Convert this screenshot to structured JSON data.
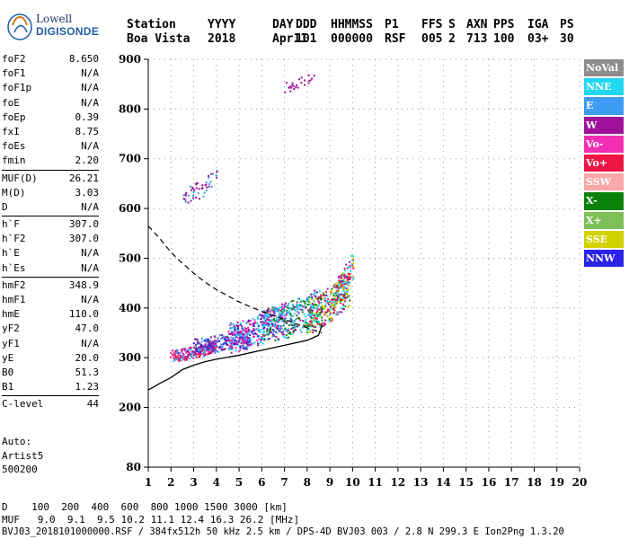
{
  "logo": {
    "line1": "Lowell",
    "line2": "DIGISONDE"
  },
  "header": {
    "row1": [
      "Station",
      "YYYY",
      "DAY",
      "DDD",
      "HHMMSS",
      "P1",
      "FFS",
      "S",
      "AXN",
      "PPS",
      "IGA",
      "PS"
    ],
    "row2": [
      "Boa Vista",
      "2018",
      "Apr11",
      "101",
      "000000",
      "RSF",
      "005",
      "2",
      "713",
      "100",
      "03+",
      "30"
    ]
  },
  "params": [
    [
      {
        "label": "foF2",
        "value": "8.650"
      },
      {
        "label": "foF1",
        "value": "N/A"
      },
      {
        "label": "foF1p",
        "value": "N/A"
      },
      {
        "label": "foE",
        "value": "N/A"
      },
      {
        "label": "foEp",
        "value": "0.39"
      },
      {
        "label": "fxI",
        "value": "8.75"
      },
      {
        "label": "foEs",
        "value": "N/A"
      },
      {
        "label": "fmin",
        "value": "2.20"
      }
    ],
    [
      {
        "label": "MUF(D)",
        "value": "26.21"
      },
      {
        "label": "M(D)",
        "value": "3.03"
      },
      {
        "label": "D",
        "value": "N/A"
      }
    ],
    [
      {
        "label": "h`F",
        "value": "307.0"
      },
      {
        "label": "h`F2",
        "value": "307.0"
      },
      {
        "label": "h`E",
        "value": "N/A"
      },
      {
        "label": "h`Es",
        "value": "N/A"
      }
    ],
    [
      {
        "label": "hmF2",
        "value": "348.9"
      },
      {
        "label": "hmF1",
        "value": "N/A"
      },
      {
        "label": "hmE",
        "value": "110.0"
      },
      {
        "label": "yF2",
        "value": "47.0"
      },
      {
        "label": "yF1",
        "value": "N/A"
      },
      {
        "label": "yE",
        "value": "20.0"
      },
      {
        "label": "B0",
        "value": "51.3"
      },
      {
        "label": "B1",
        "value": "1.23"
      }
    ],
    [
      {
        "label": "C-level",
        "value": "44"
      }
    ]
  ],
  "auto": {
    "line1": "Auto:",
    "line2": "Artist5",
    "line3": "500200"
  },
  "legend": [
    {
      "label": "NoVal",
      "color": "#8c8c8c"
    },
    {
      "label": "NNE",
      "color": "#22d7f0"
    },
    {
      "label": "E",
      "color": "#3d9df2"
    },
    {
      "label": "W",
      "color": "#a0119a"
    },
    {
      "label": "Vo-",
      "color": "#f22fb4"
    },
    {
      "label": "Vo+",
      "color": "#ef1545"
    },
    {
      "label": "SSW",
      "color": "#f8a8a8"
    },
    {
      "label": "X-",
      "color": "#0a820a"
    },
    {
      "label": "X+",
      "color": "#7fbf5a"
    },
    {
      "label": "SSE",
      "color": "#d2d200"
    },
    {
      "label": "NNW",
      "color": "#2a22e6"
    }
  ],
  "bottom": {
    "d_line": "D    100  200  400  600  800 1000 1500 3000 [km]",
    "muf_line": "MUF   9.0  9.1  9.5 10.2 11.1 12.4 16.3 26.2 [MHz]",
    "file_line": "BVJ03_2018101000000.RSF / 384fx512h 50 kHz 2.5 km / DPS-4D BVJ03 003 / 2.8 N 299.3 E Ion2Png 1.3.20"
  },
  "chart_data": {
    "type": "scatter",
    "xlim": [
      1,
      20
    ],
    "ylim": [
      80,
      900
    ],
    "x_ticks": [
      1,
      2,
      3,
      4,
      5,
      6,
      7,
      8,
      9,
      10,
      11,
      12,
      13,
      14,
      15,
      16,
      17,
      18,
      19,
      20
    ],
    "y_ticks": [
      80,
      200,
      300,
      400,
      500,
      600,
      700,
      800,
      900
    ],
    "grid": true,
    "profile_line": [
      [
        1.0,
        235
      ],
      [
        1.5,
        248
      ],
      [
        2.0,
        260
      ],
      [
        2.5,
        276
      ],
      [
        3.0,
        285
      ],
      [
        3.5,
        292
      ],
      [
        4.0,
        297
      ],
      [
        5.0,
        305
      ],
      [
        6.0,
        315
      ],
      [
        7.0,
        325
      ],
      [
        8.0,
        335
      ],
      [
        8.5,
        345
      ],
      [
        8.65,
        365
      ]
    ],
    "muf_curve": [
      [
        1.0,
        565
      ],
      [
        1.5,
        540
      ],
      [
        2.0,
        512
      ],
      [
        2.5,
        490
      ],
      [
        3.0,
        470
      ],
      [
        3.5,
        452
      ],
      [
        4.0,
        437
      ],
      [
        5.0,
        412
      ],
      [
        6.0,
        393
      ],
      [
        7.0,
        377
      ],
      [
        8.0,
        360
      ],
      [
        8.65,
        350
      ]
    ],
    "traces": [
      {
        "from": [
          2.0,
          305
        ],
        "to": [
          4.0,
          325
        ],
        "spread": 12,
        "colors": [
          "#a0119a",
          "#ef1545",
          "#f22fb4",
          "#3d9df2"
        ],
        "n": 220
      },
      {
        "from": [
          3.0,
          325
        ],
        "to": [
          5.5,
          345
        ],
        "spread": 16,
        "colors": [
          "#2a22e6",
          "#3d9df2",
          "#a0119a"
        ],
        "n": 220
      },
      {
        "from": [
          4.5,
          340
        ],
        "to": [
          7.0,
          385
        ],
        "spread": 30,
        "colors": [
          "#a0119a",
          "#22d7f0",
          "#2a22e6",
          "#f22fb4"
        ],
        "n": 320
      },
      {
        "from": [
          6.0,
          365
        ],
        "to": [
          8.5,
          405
        ],
        "spread": 35,
        "colors": [
          "#22d7f0",
          "#3d9df2",
          "#a0119a",
          "#0a820a"
        ],
        "n": 320
      },
      {
        "from": [
          8.0,
          385
        ],
        "to": [
          9.8,
          440
        ],
        "spread": 35,
        "colors": [
          "#0a820a",
          "#ef1545",
          "#22d7f0",
          "#d2d200",
          "#a0119a"
        ],
        "n": 260
      },
      {
        "from": [
          9.0,
          420
        ],
        "to": [
          10.0,
          490
        ],
        "spread": 25,
        "colors": [
          "#22d7f0",
          "#d2d200",
          "#ef1545",
          "#a0119a"
        ],
        "n": 120
      },
      {
        "from": [
          2.5,
          625
        ],
        "to": [
          4.0,
          665
        ],
        "spread": 18,
        "colors": [
          "#a0119a",
          "#3d9df2"
        ],
        "n": 50
      },
      {
        "from": [
          7.0,
          845
        ],
        "to": [
          8.3,
          870
        ],
        "spread": 10,
        "colors": [
          "#a0119a"
        ],
        "n": 25
      }
    ]
  }
}
